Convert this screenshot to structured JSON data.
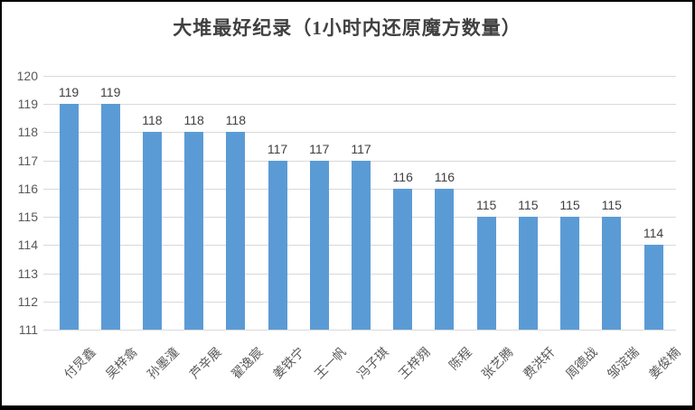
{
  "chart_data": {
    "type": "bar",
    "title": "大堆最好纪录（1小时内还原魔方数量）",
    "categories": [
      "付炅鑫",
      "吴梓翕",
      "孙墨潼",
      "芦辛展",
      "翟逸宸",
      "姜铁宁",
      "王一帆",
      "冯子琪",
      "王梓翙",
      "陈程",
      "张艺腾",
      "费洪轩",
      "周德战",
      "邹淀瑞",
      "姜俊楠"
    ],
    "values": [
      119,
      119,
      118,
      118,
      118,
      117,
      117,
      117,
      116,
      116,
      115,
      115,
      115,
      115,
      114
    ],
    "xlabel": "",
    "ylabel": "",
    "ylim": [
      111,
      120
    ],
    "ytick_step": 1,
    "yticks": [
      111,
      112,
      113,
      114,
      115,
      116,
      117,
      118,
      119,
      120
    ],
    "grid": true,
    "legend_position": "none",
    "data_labels": true,
    "colors": {
      "bar": "#5b9bd5",
      "gridline": "#d9d9d9",
      "title_text": "#404040",
      "value_label_text": "#404040",
      "axis_text": "#595959",
      "frame_border": "#000000"
    }
  }
}
